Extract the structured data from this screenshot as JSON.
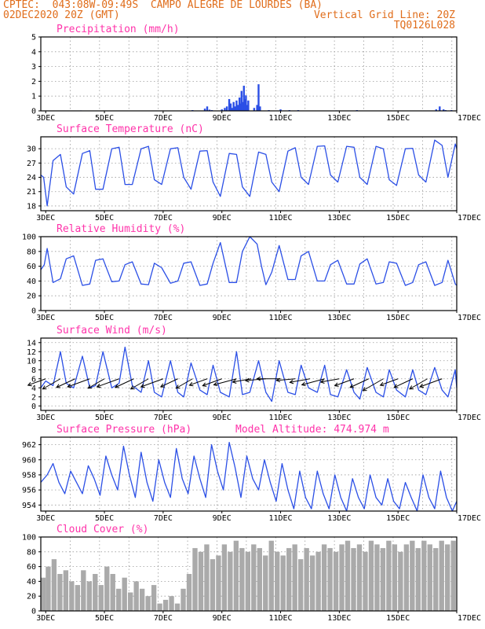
{
  "header": {
    "line1": "CPTEC:  043:08W-09:49S  CAMPO ALEGRE DE LOURDES (BA)",
    "line2": "02DEC2020 20Z (GMT)",
    "grid_line": "Vertical Grid Line: 20Z",
    "code": "TQ0126L028"
  },
  "colors": {
    "header": "#e06d1b",
    "title": "#ff33aa",
    "line": "#2b4fe6",
    "cloud": "#aaaaaa",
    "wind_arrow": "#000000"
  },
  "x_axis": {
    "start_day": 2.833,
    "end_day": 17.0,
    "tick_labels": [
      "3DEC",
      "5DEC",
      "7DEC",
      "9DEC",
      "11DEC",
      "13DEC",
      "15DEC",
      "17DEC"
    ],
    "tick_days": [
      3,
      5,
      7,
      9,
      11,
      13,
      15,
      17
    ]
  },
  "chart_data": [
    {
      "id": "precip",
      "type": "bar",
      "title": "Precipitation (mm/h)",
      "ylim": [
        0,
        5
      ],
      "yticks": [
        "0",
        "1",
        "2",
        "3",
        "4",
        "5"
      ],
      "x_days": [
        4.2,
        8.0,
        8.42,
        8.5,
        8.58,
        8.66,
        8.75,
        9.0,
        9.1,
        9.17,
        9.25,
        9.3,
        9.35,
        9.4,
        9.45,
        9.5,
        9.55,
        9.6,
        9.64,
        9.67,
        9.7,
        9.75,
        9.78,
        9.82,
        9.86,
        9.9,
        10.1,
        10.2,
        10.25,
        10.3,
        10.6,
        11.0,
        11.3,
        11.6,
        12.9,
        13.6,
        14.9,
        16.3,
        16.42,
        16.55,
        16.62,
        16.82
      ],
      "values": [
        0.03,
        0.05,
        0.15,
        0.3,
        0.08,
        0.05,
        0.02,
        0.1,
        0.2,
        0.3,
        0.8,
        0.5,
        0.2,
        0.6,
        0.3,
        0.7,
        0.4,
        0.9,
        0.5,
        1.35,
        0.6,
        1.7,
        0.8,
        1.05,
        0.4,
        0.7,
        0.2,
        0.4,
        1.8,
        0.3,
        0.05,
        0.1,
        0.05,
        0.05,
        0.03,
        0.05,
        0.02,
        0.1,
        0.3,
        0.1,
        0.05,
        0.05
      ],
      "grid": true
    },
    {
      "id": "temp",
      "type": "line",
      "title": "Surface Temperature (nC)",
      "ylim": [
        17,
        32.5
      ],
      "yticks": [
        "18",
        "21",
        "24",
        "27",
        "30"
      ],
      "x_days": [
        2.83,
        2.93,
        3.05,
        3.25,
        3.5,
        3.7,
        3.95,
        4.25,
        4.5,
        4.7,
        4.95,
        5.25,
        5.5,
        5.7,
        5.95,
        6.25,
        6.5,
        6.7,
        6.95,
        7.25,
        7.5,
        7.7,
        7.95,
        8.25,
        8.5,
        8.7,
        8.95,
        9.25,
        9.5,
        9.7,
        9.95,
        10.25,
        10.5,
        10.7,
        10.95,
        11.25,
        11.5,
        11.7,
        11.95,
        12.25,
        12.5,
        12.7,
        12.95,
        13.25,
        13.5,
        13.7,
        13.95,
        14.25,
        14.5,
        14.7,
        14.95,
        15.25,
        15.5,
        15.7,
        15.95,
        16.25,
        16.5,
        16.7,
        16.95,
        17.0
      ],
      "values": [
        24.5,
        24.0,
        18.0,
        27.5,
        28.8,
        22.0,
        20.5,
        29.0,
        29.6,
        21.5,
        21.5,
        30.0,
        30.3,
        22.5,
        22.5,
        30.0,
        30.5,
        23.5,
        22.5,
        30.0,
        30.2,
        24.0,
        21.5,
        29.5,
        29.6,
        23.0,
        20.0,
        29.0,
        28.8,
        22.0,
        20.0,
        29.3,
        28.8,
        23.0,
        21.0,
        29.5,
        30.2,
        24.0,
        22.5,
        30.5,
        30.6,
        24.5,
        23.0,
        30.5,
        30.3,
        24.0,
        22.5,
        30.5,
        30.0,
        23.5,
        22.3,
        30.0,
        30.1,
        24.5,
        23.0,
        31.8,
        30.7,
        24.0,
        31.0,
        30.0
      ],
      "grid": true
    },
    {
      "id": "rh",
      "type": "line",
      "title": "Relative Humidity (%)",
      "ylim": [
        0,
        100
      ],
      "yticks": [
        "0",
        "20",
        "40",
        "60",
        "80",
        "100"
      ],
      "x_days": [
        2.83,
        2.95,
        3.05,
        3.25,
        3.5,
        3.7,
        3.95,
        4.25,
        4.5,
        4.7,
        4.95,
        5.25,
        5.5,
        5.7,
        5.95,
        6.25,
        6.5,
        6.7,
        6.95,
        7.25,
        7.5,
        7.7,
        7.95,
        8.25,
        8.5,
        8.7,
        8.95,
        9.25,
        9.5,
        9.7,
        9.95,
        10.2,
        10.35,
        10.5,
        10.7,
        10.95,
        11.25,
        11.5,
        11.7,
        11.95,
        12.25,
        12.5,
        12.7,
        12.95,
        13.25,
        13.5,
        13.7,
        13.95,
        14.25,
        14.5,
        14.7,
        14.95,
        15.25,
        15.5,
        15.7,
        15.95,
        16.25,
        16.5,
        16.7,
        16.95,
        17.0
      ],
      "values": [
        55,
        62,
        84,
        38,
        43,
        70,
        74,
        34,
        36,
        68,
        70,
        39,
        40,
        62,
        66,
        36,
        35,
        64,
        58,
        37,
        40,
        64,
        66,
        34,
        36,
        64,
        92,
        38,
        38,
        80,
        100,
        90,
        60,
        35,
        52,
        88,
        42,
        42,
        74,
        80,
        40,
        40,
        62,
        68,
        36,
        36,
        63,
        70,
        36,
        38,
        66,
        64,
        34,
        38,
        62,
        66,
        34,
        38,
        68,
        36,
        34
      ],
      "grid": true
    },
    {
      "id": "wind",
      "type": "line",
      "title": "Surface Wind (m/s)",
      "ylim": [
        -1,
        15
      ],
      "yticks": [
        "0",
        "2",
        "4",
        "6",
        "8",
        "10",
        "12",
        "14"
      ],
      "x_days": [
        2.83,
        3.0,
        3.25,
        3.5,
        3.7,
        3.95,
        4.25,
        4.5,
        4.7,
        4.95,
        5.25,
        5.5,
        5.7,
        5.95,
        6.25,
        6.5,
        6.7,
        6.95,
        7.25,
        7.5,
        7.7,
        7.95,
        8.25,
        8.5,
        8.7,
        8.95,
        9.25,
        9.5,
        9.7,
        9.95,
        10.25,
        10.5,
        10.7,
        10.95,
        11.25,
        11.5,
        11.7,
        11.95,
        12.25,
        12.5,
        12.7,
        12.95,
        13.25,
        13.5,
        13.7,
        13.95,
        14.25,
        14.5,
        14.7,
        14.95,
        15.25,
        15.5,
        15.7,
        15.95,
        16.25,
        16.5,
        16.7,
        16.95,
        17.0
      ],
      "values": [
        4,
        5.5,
        4.5,
        12,
        5,
        4,
        11,
        4,
        4.5,
        12,
        4,
        5,
        13,
        4.5,
        3,
        10,
        3,
        2,
        10,
        3,
        2,
        9.5,
        3.5,
        2.5,
        9,
        3,
        2,
        12,
        2.5,
        3,
        10,
        3,
        1,
        10,
        3,
        2.5,
        9,
        4,
        3,
        9,
        2.5,
        2,
        8,
        3,
        1.5,
        8.5,
        3,
        2,
        8,
        3.5,
        2,
        8,
        3.5,
        2.5,
        8.5,
        3.5,
        2,
        8,
        4
      ],
      "arrows_x_days": [
        3.0,
        3.5,
        4.0,
        4.5,
        5.0,
        5.5,
        6.0,
        6.5,
        7.0,
        7.5,
        8.0,
        8.5,
        9.0,
        9.5,
        10.0,
        10.5,
        11.0,
        11.5,
        12.0,
        12.5,
        13.0,
        13.5,
        14.0,
        14.5,
        15.0,
        15.5,
        16.0,
        16.5
      ],
      "arrows_len": [
        24,
        26,
        26,
        30,
        24,
        30,
        26,
        26,
        30,
        24,
        24,
        24,
        26,
        30,
        24,
        26,
        30,
        24,
        26,
        30,
        24,
        26,
        26,
        30,
        24,
        26,
        26,
        30
      ],
      "arrows_dir_deg": [
        200,
        210,
        205,
        200,
        210,
        200,
        205,
        210,
        200,
        205,
        210,
        200,
        200,
        195,
        190,
        185,
        180,
        185,
        190,
        195,
        190,
        200,
        205,
        210,
        200,
        205,
        210,
        200
      ],
      "grid": true
    },
    {
      "id": "pressure",
      "type": "line",
      "title": "Surface Pressure (hPa)",
      "extra_label": "Model Altitude: 474.974 m",
      "ylim": [
        953.2,
        963
      ],
      "yticks": [
        "954",
        "956",
        "958",
        "960",
        "962"
      ],
      "x_days": [
        2.83,
        3.05,
        3.25,
        3.45,
        3.65,
        3.85,
        4.05,
        4.25,
        4.45,
        4.65,
        4.85,
        5.05,
        5.25,
        5.45,
        5.65,
        5.85,
        6.05,
        6.25,
        6.45,
        6.65,
        6.85,
        7.05,
        7.25,
        7.45,
        7.65,
        7.85,
        8.05,
        8.25,
        8.45,
        8.65,
        8.85,
        9.05,
        9.25,
        9.45,
        9.65,
        9.85,
        10.05,
        10.25,
        10.45,
        10.65,
        10.85,
        11.05,
        11.25,
        11.45,
        11.65,
        11.85,
        12.05,
        12.25,
        12.45,
        12.65,
        12.85,
        13.05,
        13.25,
        13.45,
        13.65,
        13.85,
        14.05,
        14.25,
        14.45,
        14.65,
        14.85,
        15.05,
        15.25,
        15.45,
        15.65,
        15.85,
        16.05,
        16.25,
        16.45,
        16.65,
        16.85,
        17.0
      ],
      "values": [
        957,
        958,
        959.5,
        957,
        955.5,
        958.5,
        957,
        955.5,
        959.2,
        957.5,
        955.3,
        960.5,
        958,
        956,
        961.8,
        958,
        955,
        961,
        957,
        954.5,
        960,
        957,
        955,
        961.5,
        957.5,
        955.5,
        960.5,
        957.5,
        955,
        962,
        958.5,
        956,
        962.3,
        959,
        955,
        960.5,
        957.5,
        956,
        960,
        957,
        954.5,
        959.5,
        956,
        953.5,
        958.5,
        955,
        953.5,
        958.5,
        955.5,
        953.5,
        958,
        955,
        952.5,
        957.5,
        955,
        953.5,
        958,
        955,
        954,
        957.5,
        954.5,
        953.5,
        957,
        955,
        953,
        958,
        955,
        953.5,
        958.5,
        955,
        952.5,
        954.5
      ],
      "grid": true
    },
    {
      "id": "cloud",
      "type": "bar",
      "title": "Cloud Cover (%)",
      "ylim": [
        0,
        100
      ],
      "yticks": [
        "0",
        "20",
        "40",
        "60",
        "80",
        "100"
      ],
      "x_days": [
        2.83,
        3.0,
        3.2,
        3.4,
        3.6,
        3.8,
        4.0,
        4.2,
        4.4,
        4.6,
        4.8,
        5.0,
        5.2,
        5.4,
        5.6,
        5.8,
        6.0,
        6.2,
        6.4,
        6.6,
        6.8,
        7.0,
        7.2,
        7.4,
        7.6,
        7.8,
        8.0,
        8.2,
        8.4,
        8.6,
        8.8,
        9.0,
        9.2,
        9.4,
        9.6,
        9.8,
        10.0,
        10.2,
        10.4,
        10.6,
        10.8,
        11.0,
        11.2,
        11.4,
        11.6,
        11.8,
        12.0,
        12.2,
        12.4,
        12.6,
        12.8,
        13.0,
        13.2,
        13.4,
        13.6,
        13.8,
        14.0,
        14.2,
        14.4,
        14.6,
        14.8,
        15.0,
        15.2,
        15.4,
        15.6,
        15.8,
        16.0,
        16.2,
        16.4,
        16.6,
        16.8,
        17.0
      ],
      "values": [
        45,
        60,
        70,
        50,
        55,
        40,
        35,
        55,
        40,
        50,
        35,
        60,
        50,
        30,
        45,
        25,
        40,
        30,
        20,
        35,
        10,
        15,
        20,
        10,
        30,
        50,
        85,
        80,
        90,
        70,
        75,
        90,
        80,
        95,
        85,
        80,
        90,
        85,
        75,
        95,
        80,
        75,
        85,
        90,
        70,
        85,
        75,
        80,
        90,
        85,
        80,
        90,
        95,
        85,
        90,
        80,
        95,
        90,
        85,
        95,
        90,
        80,
        90,
        95,
        85,
        95,
        90,
        85,
        95,
        90,
        95,
        90
      ],
      "grid": true
    }
  ]
}
